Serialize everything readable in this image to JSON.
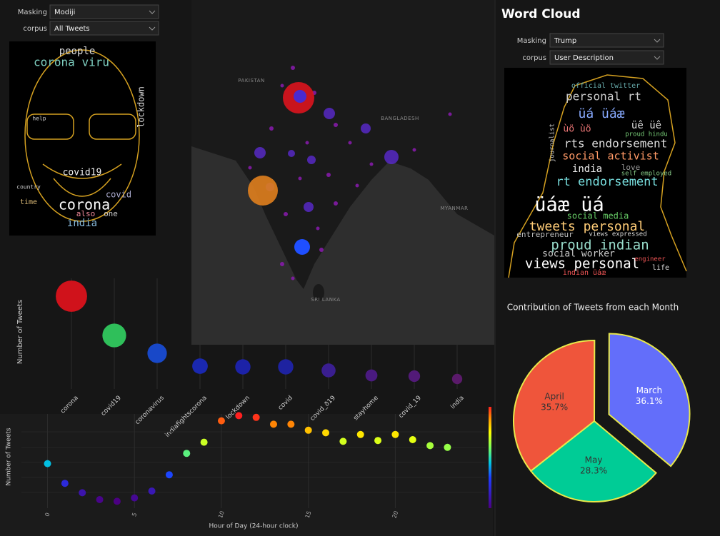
{
  "left_panel": {
    "controls": [
      {
        "label": "Masking",
        "value": "Modiji"
      },
      {
        "label": "corpus",
        "value": "All Tweets"
      }
    ],
    "word_cloud_words": [
      "people",
      "corona viru",
      "lockdown",
      "covid19",
      "covid",
      "corona",
      "also",
      "one",
      "india",
      "time",
      "help",
      "country"
    ]
  },
  "map": {
    "labels": [
      "PAKISTAN",
      "BANGLADESH",
      "MYANMAR",
      "SRI LANKA"
    ]
  },
  "chart_data": [
    {
      "type": "bubble",
      "y_label": "Number of Tweets",
      "categories": [
        "corona",
        "covid19",
        "coronavirus",
        "indiafightscorona",
        "lockdown",
        "covid",
        "covid_ð19",
        "stayhome",
        "covid_19",
        "india"
      ],
      "values": [
        1040,
        600,
        400,
        256,
        248,
        248,
        208,
        152,
        144,
        112
      ],
      "colors": [
        "#d0121b",
        "#2fbf5a",
        "#1848c8",
        "#1a28b0",
        "#1c22a8",
        "#1e22a0",
        "#3a1e90",
        "#4a1a80",
        "#521a78",
        "#5a1a6a"
      ],
      "ylim": [
        0,
        1200
      ],
      "grid": true
    },
    {
      "type": "scatter",
      "y_label": "Number of Tweets",
      "x_label": "Hour of Day (24-hour clock)",
      "x": [
        0,
        1,
        2,
        3,
        4,
        5,
        6,
        7,
        8,
        9,
        10,
        11,
        12,
        13,
        14,
        15,
        16,
        17,
        18,
        19,
        20,
        21,
        22,
        23
      ],
      "values": [
        52,
        29,
        18,
        10,
        8,
        12,
        20,
        39,
        64,
        77,
        102,
        108,
        106,
        98,
        98,
        91,
        88,
        78,
        86,
        79,
        86,
        80,
        73,
        71
      ],
      "xlim": [
        -1.5,
        25.2
      ],
      "xticks": [
        0,
        5,
        10,
        15,
        20
      ],
      "ylim": [
        0,
        110
      ],
      "grid": true,
      "colorbar": true,
      "colorscale": [
        [
          0,
          "#4b0082"
        ],
        [
          0.3,
          "#1e3cff"
        ],
        [
          0.45,
          "#00c8e0"
        ],
        [
          0.6,
          "#7cff5a"
        ],
        [
          0.75,
          "#ffff00"
        ],
        [
          0.88,
          "#ff9900"
        ],
        [
          1,
          "#ff2020"
        ]
      ]
    },
    {
      "type": "pie",
      "title": "Contribution of Tweets from each Month",
      "categories": [
        "March",
        "April",
        "May"
      ],
      "values": [
        36.1,
        35.7,
        28.3
      ],
      "value_labels": [
        "36.1%",
        "35.7%",
        "28.3%"
      ],
      "colors": [
        "#636efa",
        "#ef553b",
        "#00cc96"
      ],
      "pull": [
        0.2,
        0,
        0
      ],
      "rotation": 130,
      "direction": "counterclockwise",
      "outline": "#e8e84a"
    }
  ],
  "right_panel": {
    "title": "Word Cloud",
    "controls": [
      {
        "label": "Masking",
        "value": "Trump"
      },
      {
        "label": "corpus",
        "value": "User Description"
      }
    ],
    "word_cloud_words": [
      "official twitter",
      "personal rt",
      "üá üáæ",
      "üê üê",
      "ùö ùö",
      "proud hindu",
      "rts endorsement",
      "social activist",
      "india",
      "love",
      "self employed",
      "rt endorsement",
      "üáæ üá",
      "social media",
      "tweets personal",
      "entrepreneur",
      "views expressed",
      "proud indian",
      "social worker",
      "views personal",
      "indian üáæ",
      "engineer",
      "life",
      "journalist"
    ]
  }
}
